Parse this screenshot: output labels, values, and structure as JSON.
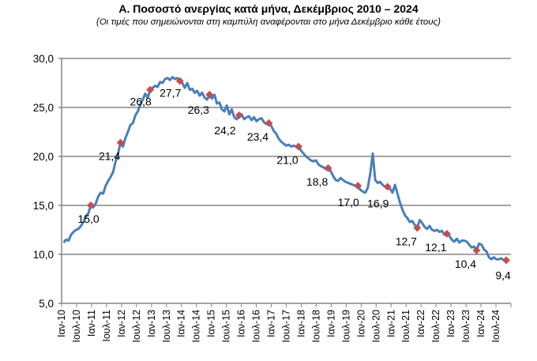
{
  "chart_data": {
    "type": "line",
    "title": "Α. Ποσοστό ανεργίας κατά μήνα, Δεκέμβριος 2010 – 2024",
    "subtitle": "(Οι τιμές που σημειώνονται στη καμπύλη αναφέρονται στο μήνα Δεκέμβριο κάθε έτους)",
    "xlabel": "",
    "ylabel": "",
    "ylim": [
      5,
      30
    ],
    "yticks": [
      "5,0",
      "10,0",
      "15,0",
      "20,0",
      "25,0",
      "30,0"
    ],
    "ytick_values": [
      5,
      10,
      15,
      20,
      25,
      30
    ],
    "grid": true,
    "xtick_labels": [
      "Ιαν-10",
      "Ιουλ-10",
      "Ιαν-11",
      "Ιουλ-11",
      "Ιαν-12",
      "Ιουλ-12",
      "Ιαν-13",
      "Ιουλ-13",
      "Ιαν-14",
      "Ιουλ-14",
      "Ιαν-15",
      "Ιουλ-15",
      "Ιαν-16",
      "Ιουλ-16",
      "Ιαν-17",
      "Ιουλ-17",
      "Ιαν-18",
      "Ιουλ-18",
      "Ιαν-19",
      "Ιουλ-19",
      "Ιαν-20",
      "Ιουλ-20",
      "Ιαν-21",
      "Ιουλ-21",
      "Ιαν-22",
      "Ιουλ-22",
      "Ιαν-23",
      "Ιουλ-23",
      "Ιαν-24",
      "Ιουλ-24"
    ],
    "series": [
      {
        "name": "Ποσοστό ανεργίας",
        "color": "#4a7ebb",
        "start": "Ιαν-10",
        "values": [
          11.2,
          11.5,
          11.4,
          12.0,
          12.3,
          12.5,
          12.6,
          12.9,
          13.3,
          13.9,
          14.2,
          15.0,
          14.8,
          15.2,
          15.9,
          16.3,
          16.2,
          17.0,
          17.5,
          17.9,
          18.4,
          19.5,
          20.3,
          21.4,
          21.0,
          21.9,
          22.5,
          23.2,
          23.4,
          24.2,
          24.6,
          25.3,
          25.8,
          26.4,
          26.0,
          26.8,
          27.0,
          27.2,
          27.1,
          27.6,
          27.5,
          27.9,
          28.0,
          27.8,
          28.1,
          27.9,
          28.0,
          27.7,
          27.5,
          27.0,
          27.5,
          26.8,
          26.9,
          26.5,
          26.7,
          26.2,
          26.5,
          26.0,
          25.8,
          26.3,
          25.9,
          26.3,
          25.4,
          25.5,
          24.8,
          24.6,
          25.2,
          24.3,
          24.8,
          24.0,
          23.8,
          24.2,
          24.3,
          23.8,
          24.0,
          24.1,
          23.7,
          24.0,
          23.6,
          23.8,
          23.9,
          23.5,
          23.3,
          23.4,
          23.1,
          22.6,
          22.3,
          21.8,
          21.5,
          21.3,
          21.1,
          21.2,
          21.0,
          21.1,
          21.0,
          21.0,
          20.6,
          20.3,
          20.0,
          19.8,
          19.6,
          19.5,
          19.6,
          19.2,
          19.0,
          18.9,
          18.7,
          18.8,
          18.5,
          18.0,
          17.6,
          17.5,
          17.8,
          17.6,
          17.4,
          17.3,
          17.2,
          17.1,
          17.0,
          17.0,
          16.6,
          16.4,
          16.3,
          16.8,
          18.2,
          20.3,
          17.6,
          17.3,
          17.4,
          17.1,
          16.9,
          16.9,
          16.7,
          16.3,
          17.1,
          16.2,
          15.3,
          14.6,
          14.0,
          13.7,
          13.3,
          13.4,
          13.0,
          12.7,
          13.5,
          13.2,
          12.8,
          12.6,
          12.9,
          12.5,
          12.4,
          12.5,
          12.3,
          12.4,
          12.0,
          12.1,
          11.9,
          11.5,
          11.3,
          11.6,
          11.2,
          11.4,
          11.4,
          11.3,
          11.0,
          10.7,
          10.8,
          10.4,
          11.1,
          11.0,
          10.5,
          10.3,
          9.7,
          9.5,
          9.7,
          9.5,
          9.5,
          9.6,
          9.4,
          9.4
        ]
      }
    ],
    "december_markers": {
      "color": "#c0504d",
      "labels": [
        "15,0",
        "21,4",
        "26,8",
        "27,7",
        "26,3",
        "24,2",
        "23,4",
        "21,0",
        "18,8",
        "17,0",
        "16,9",
        "12,7",
        "12,1",
        "10,4",
        "9,4"
      ]
    }
  }
}
